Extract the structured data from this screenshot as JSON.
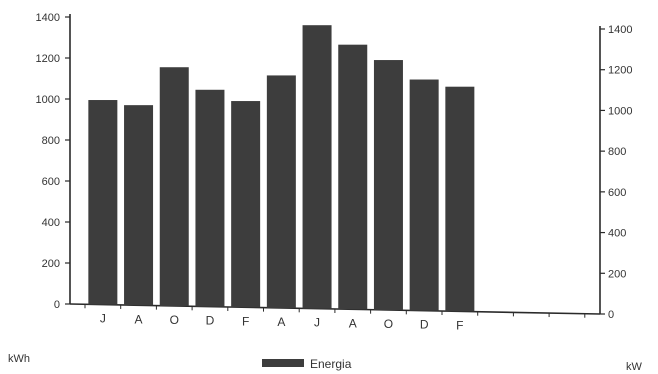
{
  "chart_data": {
    "type": "bar",
    "categories": [
      "J",
      "A",
      "O",
      "D",
      "F",
      "A",
      "J",
      "A",
      "O",
      "D",
      "F"
    ],
    "series": [
      {
        "name": "Energia",
        "values": [
          995,
          970,
          1155,
          1045,
          990,
          1115,
          1360,
          1265,
          1190,
          1095,
          1060
        ]
      }
    ],
    "ylabel_left": "kWh",
    "ylabel_right": "kW",
    "ylim_left": [
      0,
      1400
    ],
    "yticks_left": [
      "0",
      "200",
      "400",
      "600",
      "800",
      "1000",
      "1200",
      "1400"
    ],
    "ylim_right": [
      0,
      1400
    ],
    "yticks_right": [
      "0",
      "200",
      "400",
      "600",
      "800",
      "1000",
      "1200",
      "1400"
    ],
    "legend_position": "bottom-center",
    "grid": false,
    "colors": {
      "bar": "#3d3d3d",
      "axis": "#2a2a2a"
    }
  }
}
